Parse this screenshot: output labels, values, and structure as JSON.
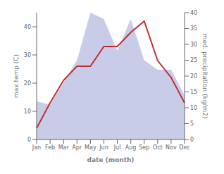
{
  "chart_data": {
    "type": "line",
    "categories": [
      "Jan",
      "Feb",
      "Mar",
      "Apr",
      "May",
      "Jun",
      "Jul",
      "Aug",
      "Sep",
      "Oct",
      "Nov",
      "Dec"
    ],
    "xlabel": "date (month)",
    "ylabel": "max temp (C)",
    "y2label": "med. precipitation (kg/m2)",
    "ylim": [
      0,
      45
    ],
    "yticks": [
      0,
      10,
      20,
      30,
      40
    ],
    "y2lim": [
      0,
      40
    ],
    "y2ticks": [
      0,
      5,
      10,
      15,
      20,
      25,
      30,
      35,
      40
    ],
    "grid": false,
    "series": [
      {
        "type": "area",
        "color": "#c8cce8",
        "axis": "y2",
        "values": [
          12,
          11,
          18,
          25,
          40,
          38,
          28,
          38,
          25,
          22,
          22,
          14
        ]
      },
      {
        "type": "line",
        "color": "#c03030",
        "values": [
          4,
          13,
          21,
          26,
          26,
          33,
          33,
          38,
          42,
          28,
          22,
          13
        ]
      }
    ]
  }
}
